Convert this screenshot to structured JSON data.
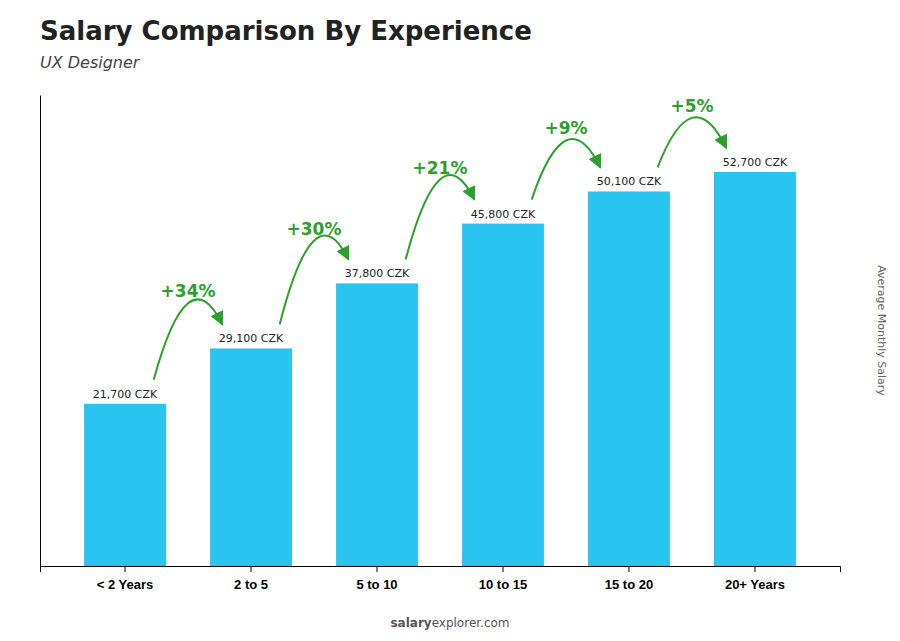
{
  "chart_data": {
    "type": "bar",
    "title": "Salary Comparison By Experience",
    "subtitle": "UX Designer",
    "ylabel": "Average Monthly Salary",
    "watermark": [
      "salary",
      "explorer.com"
    ],
    "categories": [
      "< 2 Years",
      "2 to 5",
      "5 to 10",
      "10 to 15",
      "15 to 20",
      "20+ Years"
    ],
    "values": [
      21700,
      29100,
      37800,
      45800,
      50100,
      52700
    ],
    "value_labels": [
      "21,700 CZK",
      "29,100 CZK",
      "37,800 CZK",
      "45,800 CZK",
      "50,100 CZK",
      "52,700 CZK"
    ],
    "annotations": [
      "+34%",
      "+30%",
      "+21%",
      "+9%",
      "+5%"
    ],
    "color": "#29c4f0",
    "ylim": [
      0,
      63000
    ],
    "grid": false,
    "data_labels": true,
    "tick_labels": "x"
  }
}
